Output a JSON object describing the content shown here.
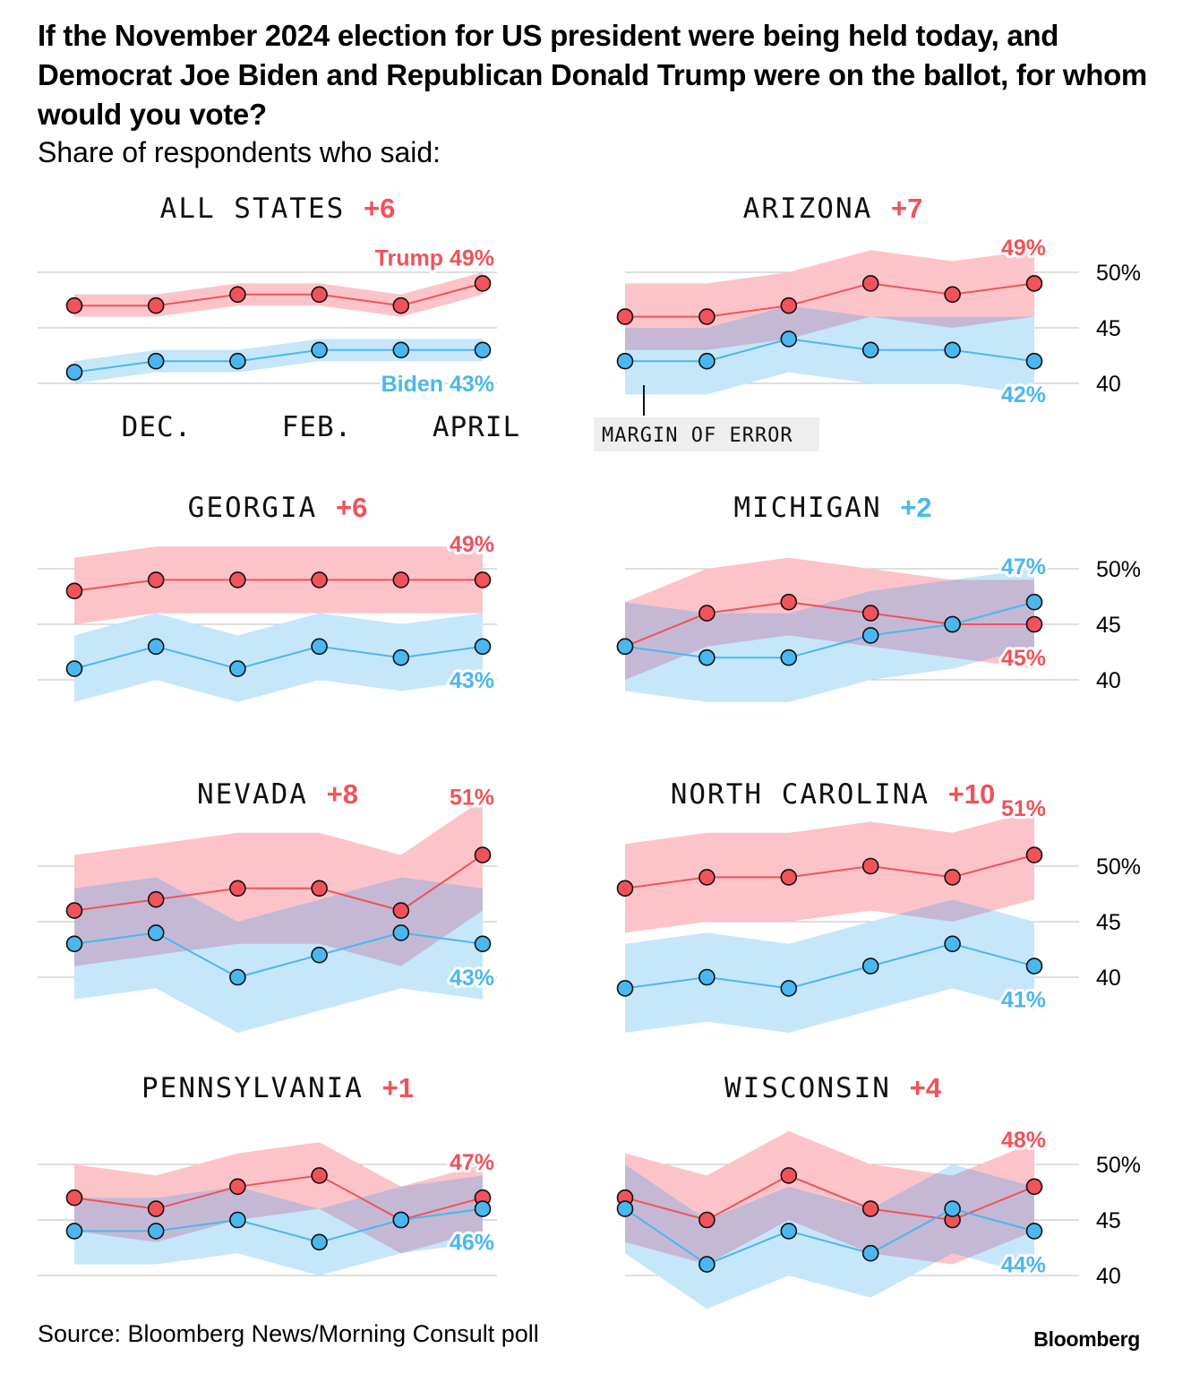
{
  "title": "If the November 2024 election for US president were being held today, and Democrat Joe Biden and Republican Donald Trump were on the ballot, for whom would you vote?",
  "subtitle": "Share of respondents who said:",
  "source": "Source: Bloomberg News/Morning Consult poll",
  "brand": "Bloomberg",
  "colors": {
    "trump": "#f2525a",
    "biden": "#4ab7f0",
    "trump_band": "#fcc4c9",
    "biden_band": "#c6e6fa",
    "overlap_band": "#c5b8d4",
    "grid": "#bdbdbd",
    "note_bg": "#eeeeee"
  },
  "x_axis_labels": [
    "DEC.",
    "FEB.",
    "APRIL"
  ],
  "annotation": "MARGIN OF ERROR",
  "chart_data": [
    {
      "type": "line",
      "title": "ALL STATES",
      "lead": "+6",
      "lead_party": "trump",
      "trump_label": "Trump 49%",
      "biden_label": "Biden 43%",
      "ylim": [
        40,
        50
      ],
      "yticks": [
        "50%",
        "45",
        "40"
      ],
      "series": [
        {
          "name": "Trump",
          "values": [
            47,
            47,
            48,
            48,
            47,
            49
          ],
          "low": [
            46,
            46,
            47,
            47,
            46,
            48
          ],
          "high": [
            48,
            48,
            49,
            49,
            48,
            50
          ]
        },
        {
          "name": "Biden",
          "values": [
            41,
            42,
            42,
            43,
            43,
            43
          ],
          "low": [
            40,
            41,
            41,
            42,
            42,
            42
          ],
          "high": [
            42,
            43,
            43,
            44,
            44,
            44
          ]
        }
      ]
    },
    {
      "type": "line",
      "title": "ARIZONA",
      "lead": "+7",
      "lead_party": "trump",
      "trump_label": "49%",
      "biden_label": "42%",
      "ylim": [
        40,
        50
      ],
      "yticks": [
        "50%",
        "45",
        "40"
      ],
      "series": [
        {
          "name": "Trump",
          "values": [
            46,
            46,
            47,
            49,
            48,
            49
          ],
          "low": [
            43,
            43,
            44,
            46,
            45,
            46
          ],
          "high": [
            49,
            49,
            50,
            52,
            51,
            52
          ]
        },
        {
          "name": "Biden",
          "values": [
            42,
            42,
            44,
            43,
            43,
            42
          ],
          "low": [
            39,
            39,
            41,
            40,
            40,
            39
          ],
          "high": [
            45,
            45,
            47,
            46,
            46,
            46
          ]
        }
      ]
    },
    {
      "type": "line",
      "title": "GEORGIA",
      "lead": "+6",
      "lead_party": "trump",
      "trump_label": "49%",
      "biden_label": "43%",
      "ylim": [
        40,
        50
      ],
      "yticks": [
        "50%",
        "45",
        "40"
      ],
      "series": [
        {
          "name": "Trump",
          "values": [
            48,
            49,
            49,
            49,
            49,
            49
          ],
          "low": [
            45,
            46,
            46,
            46,
            46,
            46
          ],
          "high": [
            51,
            52,
            52,
            52,
            52,
            52
          ]
        },
        {
          "name": "Biden",
          "values": [
            41,
            43,
            41,
            43,
            42,
            43
          ],
          "low": [
            38,
            40,
            38,
            40,
            39,
            40
          ],
          "high": [
            44,
            46,
            44,
            46,
            45,
            46
          ]
        }
      ]
    },
    {
      "type": "line",
      "title": "MICHIGAN",
      "lead": "+2",
      "lead_party": "biden",
      "trump_label": "45%",
      "biden_label": "47%",
      "ylim": [
        40,
        50
      ],
      "yticks": [
        "50%",
        "45",
        "40"
      ],
      "series": [
        {
          "name": "Trump",
          "values": [
            43,
            46,
            47,
            46,
            45,
            45
          ],
          "low": [
            40,
            43,
            44,
            43,
            42,
            41
          ],
          "high": [
            47,
            50,
            51,
            50,
            49,
            49
          ]
        },
        {
          "name": "Biden",
          "values": [
            43,
            42,
            42,
            44,
            45,
            47
          ],
          "low": [
            39,
            38,
            38,
            40,
            41,
            43
          ],
          "high": [
            47,
            46,
            46,
            48,
            49,
            50
          ]
        }
      ]
    },
    {
      "type": "line",
      "title": "NEVADA",
      "lead": "+8",
      "lead_party": "trump",
      "trump_label": "51%",
      "biden_label": "43%",
      "ylim": [
        40,
        50
      ],
      "yticks": [
        "50%",
        "45",
        "40"
      ],
      "series": [
        {
          "name": "Trump",
          "values": [
            46,
            47,
            48,
            48,
            46,
            51
          ],
          "low": [
            41,
            42,
            43,
            43,
            41,
            46
          ],
          "high": [
            51,
            52,
            53,
            53,
            51,
            56
          ]
        },
        {
          "name": "Biden",
          "values": [
            43,
            44,
            40,
            42,
            44,
            43
          ],
          "low": [
            38,
            39,
            35,
            37,
            39,
            38
          ],
          "high": [
            48,
            49,
            45,
            47,
            49,
            48
          ]
        }
      ]
    },
    {
      "type": "line",
      "title": "NORTH CAROLINA",
      "lead": "+10",
      "lead_party": "trump",
      "trump_label": "51%",
      "biden_label": "41%",
      "ylim": [
        40,
        50
      ],
      "yticks": [
        "50%",
        "45",
        "40"
      ],
      "series": [
        {
          "name": "Trump",
          "values": [
            48,
            49,
            49,
            50,
            49,
            51
          ],
          "low": [
            44,
            45,
            45,
            46,
            45,
            47
          ],
          "high": [
            52,
            53,
            53,
            54,
            53,
            55
          ]
        },
        {
          "name": "Biden",
          "values": [
            39,
            40,
            39,
            41,
            43,
            41
          ],
          "low": [
            35,
            36,
            35,
            37,
            39,
            37
          ],
          "high": [
            43,
            44,
            43,
            45,
            47,
            45
          ]
        }
      ]
    },
    {
      "type": "line",
      "title": "PENNSYLVANIA",
      "lead": "+1",
      "lead_party": "trump",
      "trump_label": "47%",
      "biden_label": "46%",
      "ylim": [
        40,
        50
      ],
      "yticks": [
        "50%",
        "45",
        "40"
      ],
      "series": [
        {
          "name": "Trump",
          "values": [
            47,
            46,
            48,
            49,
            45,
            47
          ],
          "low": [
            44,
            43,
            45,
            46,
            42,
            44
          ],
          "high": [
            50,
            49,
            51,
            52,
            48,
            50
          ]
        },
        {
          "name": "Biden",
          "values": [
            44,
            44,
            45,
            43,
            45,
            46
          ],
          "low": [
            41,
            41,
            42,
            40,
            42,
            43
          ],
          "high": [
            47,
            47,
            48,
            46,
            48,
            49
          ]
        }
      ]
    },
    {
      "type": "line",
      "title": "WISCONSIN",
      "lead": "+4",
      "lead_party": "trump",
      "trump_label": "48%",
      "biden_label": "44%",
      "ylim": [
        40,
        50
      ],
      "yticks": [
        "50%",
        "45",
        "40"
      ],
      "series": [
        {
          "name": "Trump",
          "values": [
            47,
            45,
            49,
            46,
            45,
            48
          ],
          "low": [
            43,
            41,
            45,
            42,
            41,
            44
          ],
          "high": [
            51,
            49,
            53,
            50,
            49,
            52
          ]
        },
        {
          "name": "Biden",
          "values": [
            46,
            41,
            44,
            42,
            46,
            44
          ],
          "low": [
            42,
            37,
            40,
            38,
            42,
            40
          ],
          "high": [
            50,
            45,
            48,
            46,
            50,
            48
          ]
        }
      ]
    }
  ]
}
